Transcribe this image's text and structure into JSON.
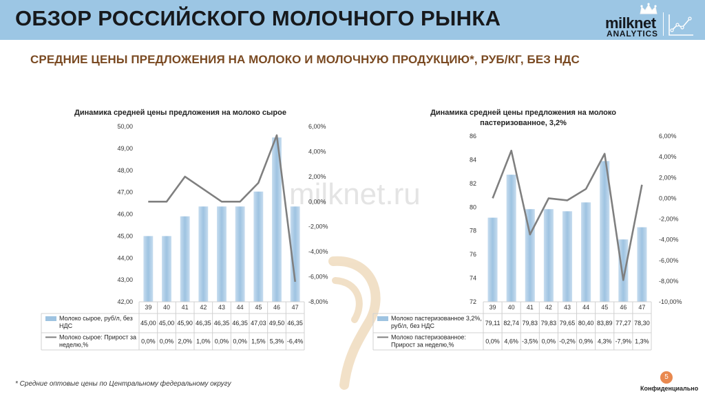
{
  "header": {
    "title": "ОБЗОР РОССИЙСКОГО МОЛОЧНОГО РЫНКА",
    "logo_word": "milknet",
    "logo_sub": "ANALYTICS"
  },
  "subtitle": "СРЕДНИЕ ЦЕНЫ ПРЕДЛОЖЕНИЯ НА МОЛОКО И МОЛОЧНУЮ ПРОДУКЦИЮ*, РУБ/КГ, БЕЗ НДС",
  "watermark": "milknet.ru",
  "footnote": "* Средние оптовые цены по Центральному федеральному округу",
  "confidential": "Конфиденциально",
  "page_number": "5",
  "colors": {
    "bar": "#9ec3e1",
    "line": "#7f7f7f",
    "header": "#9cc6e4",
    "subtitle": "#7a4a22"
  },
  "chart_data": [
    {
      "type": "bar",
      "title": "Динамика средней цены предложения на молоко сырое",
      "title_lines": [
        "Динамика средней цены предложения на молоко сырое"
      ],
      "categories": [
        "39",
        "40",
        "41",
        "42",
        "43",
        "44",
        "45",
        "46",
        "47"
      ],
      "ylim": [
        42,
        50
      ],
      "y_ticks": [
        "42,00",
        "43,00",
        "44,00",
        "45,00",
        "46,00",
        "47,00",
        "48,00",
        "49,00",
        "50,00"
      ],
      "y2lim": [
        -8,
        6
      ],
      "y2_ticks": [
        "-8,00%",
        "-6,00%",
        "-4,00%",
        "-2,00%",
        "0,00%",
        "2,00%",
        "4,00%",
        "6,00%"
      ],
      "series": [
        {
          "name": "Молоко сырое, руб/л, без НДС",
          "name_lines": [
            "Молоко сырое, руб/л, без",
            "НДС"
          ],
          "kind": "bar",
          "values": [
            45.0,
            45.0,
            45.9,
            46.35,
            46.35,
            46.35,
            47.03,
            49.5,
            46.35
          ],
          "labels": [
            "45,00",
            "45,00",
            "45,90",
            "46,35",
            "46,35",
            "46,35",
            "47,03",
            "49,50",
            "46,35"
          ]
        },
        {
          "name": "Молоко сырое: Прирост за неделю,%",
          "name_lines": [
            "Молоко сырое: Прирост за",
            "неделю,%"
          ],
          "kind": "line",
          "values": [
            0.0,
            0.0,
            2.0,
            1.0,
            0.0,
            0.0,
            1.5,
            5.3,
            -6.4
          ],
          "labels": [
            "0,0%",
            "0,0%",
            "2,0%",
            "1,0%",
            "0,0%",
            "0,0%",
            "1,5%",
            "5,3%",
            "-6,4%"
          ]
        }
      ]
    },
    {
      "type": "bar",
      "title": "Динамика средней цены предложения на молоко пастеризованное, 3,2%",
      "title_lines": [
        "Динамика средней цены предложения на молоко",
        "пастеризованное, 3,2%"
      ],
      "categories": [
        "39",
        "40",
        "41",
        "42",
        "43",
        "44",
        "45",
        "46",
        "47"
      ],
      "ylim": [
        72,
        86
      ],
      "y_ticks": [
        "72",
        "74",
        "76",
        "78",
        "80",
        "82",
        "84",
        "86"
      ],
      "y2lim": [
        -10,
        6
      ],
      "y2_ticks": [
        "-10,00%",
        "-8,00%",
        "-6,00%",
        "-4,00%",
        "-2,00%",
        "0,00%",
        "2,00%",
        "4,00%",
        "6,00%"
      ],
      "series": [
        {
          "name": "Молоко пастеризованное 3,2%, руб/л, без НДС",
          "name_lines": [
            "Молоко пастеризованное 3,2%,",
            "руб/л, без НДС"
          ],
          "kind": "bar",
          "values": [
            79.11,
            82.74,
            79.83,
            79.83,
            79.65,
            80.4,
            83.89,
            77.27,
            78.3
          ],
          "labels": [
            "79,11",
            "82,74",
            "79,83",
            "79,83",
            "79,65",
            "80,40",
            "83,89",
            "77,27",
            "78,30"
          ]
        },
        {
          "name": "Молоко пастеризованное: Прирост за неделю,%",
          "name_lines": [
            "Молоко пастеризованное:",
            "Прирост за неделю,%"
          ],
          "kind": "line",
          "values": [
            0.0,
            4.6,
            -3.5,
            0.0,
            -0.2,
            0.9,
            4.3,
            -7.9,
            1.3
          ],
          "labels": [
            "0,0%",
            "4,6%",
            "-3,5%",
            "0,0%",
            "-0,2%",
            "0,9%",
            "4,3%",
            "-7,9%",
            "1,3%"
          ]
        }
      ]
    }
  ]
}
